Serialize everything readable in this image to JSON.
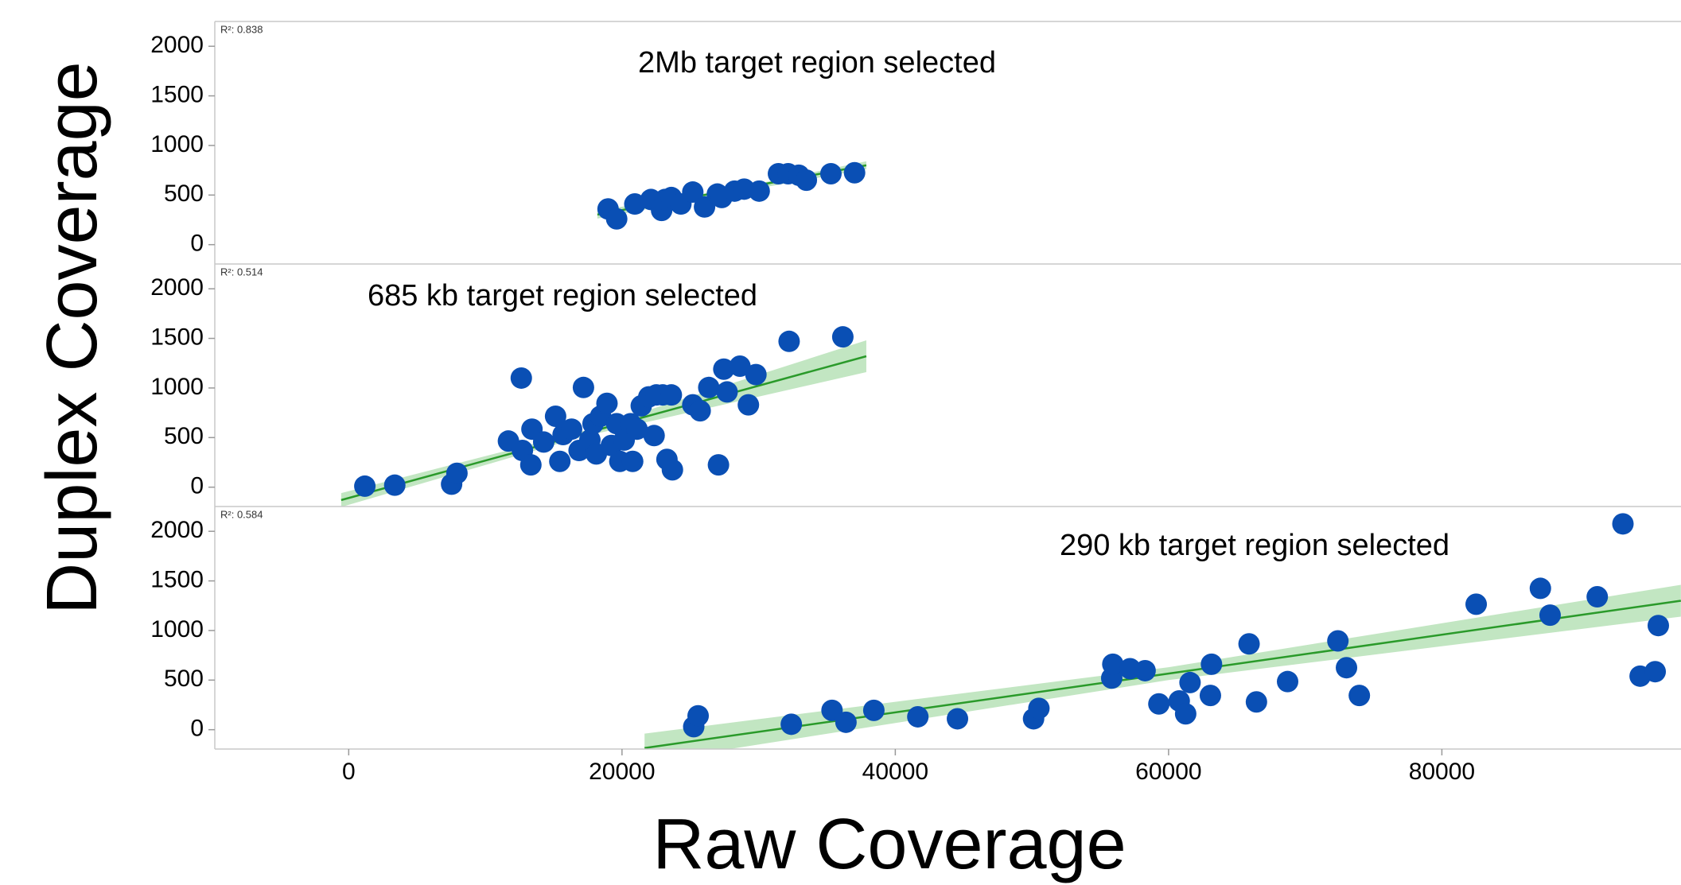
{
  "shared_axes": {
    "xlabel": "Raw Coverage",
    "ylabel": "Duplex Coverage"
  },
  "chart_data": [
    {
      "type": "scatter",
      "annotation": "2Mb target region selected",
      "r2_label": "R²: 0.838",
      "color": "#0a4fb4",
      "fit_color": "#2a9a2a",
      "band_color": "#a8dba8",
      "xlim": [
        -9800,
        97500
      ],
      "ylim": [
        -195,
        2250
      ],
      "yticks": [
        0,
        500,
        1000,
        1500,
        2000
      ],
      "x": [
        18980,
        19610,
        20940,
        22120,
        22900,
        23140,
        23610,
        24310,
        25180,
        26040,
        26980,
        27300,
        28240,
        28940,
        30040,
        31450,
        32160,
        32940,
        33490,
        35290,
        37020
      ],
      "values": [
        360,
        260,
        410,
        455,
        345,
        455,
        475,
        410,
        530,
        380,
        510,
        475,
        540,
        560,
        540,
        715,
        715,
        700,
        650,
        715,
        725
      ],
      "fit": {
        "x": [
          18200,
          37880
        ],
        "values": [
          303,
          800
        ]
      },
      "band": {
        "x": [
          18200,
          28000,
          37880
        ],
        "lower": [
          263,
          520,
          760
        ],
        "upper": [
          343,
          560,
          840
        ]
      }
    },
    {
      "type": "scatter",
      "annotation": "685 kb target region selected",
      "r2_label": "R²: 0.514",
      "color": "#0a4fb4",
      "fit_color": "#2a9a2a",
      "band_color": "#a8dba8",
      "xlim": [
        -9800,
        97500
      ],
      "ylim": [
        -195,
        2250
      ],
      "yticks": [
        0,
        500,
        1000,
        1500,
        2000
      ],
      "x": [
        1180,
        3370,
        7530,
        7920,
        11690,
        12630,
        12710,
        13330,
        13410,
        14270,
        15140,
        15450,
        15690,
        16310,
        16860,
        17180,
        17650,
        17880,
        18120,
        18430,
        18900,
        19220,
        19610,
        19840,
        20160,
        20630,
        20780,
        21100,
        21410,
        21960,
        22350,
        22510,
        22980,
        23290,
        23690,
        23610,
        25180,
        25720,
        26350,
        27060,
        27450,
        27690,
        28630,
        29250,
        29800,
        32230,
        36160
      ],
      "values": [
        10,
        20,
        30,
        140,
        465,
        1100,
        370,
        225,
        585,
        455,
        715,
        260,
        530,
        585,
        370,
        1005,
        475,
        640,
        335,
        715,
        845,
        420,
        640,
        260,
        475,
        640,
        260,
        585,
        820,
        910,
        520,
        930,
        930,
        280,
        175,
        930,
        830,
        770,
        1005,
        225,
        1190,
        960,
        1220,
        830,
        1135,
        1470,
        1515
      ],
      "fit": {
        "x": [
          -550,
          37880
        ],
        "values": [
          -130,
          1320
        ]
      },
      "band": {
        "x": [
          -550,
          17000,
          37880
        ],
        "lower": [
          -200,
          505,
          1160
        ],
        "upper": [
          -60,
          560,
          1480
        ]
      }
    },
    {
      "type": "scatter",
      "annotation": "290 kb target region selected",
      "r2_label": "R²: 0.584",
      "color": "#0a4fb4",
      "fit_color": "#2a9a2a",
      "band_color": "#a8dba8",
      "xlim": [
        -9800,
        97500
      ],
      "ylim": [
        -195,
        2250
      ],
      "yticks": [
        0,
        500,
        1000,
        1500,
        2000
      ],
      "xticks": [
        0,
        20000,
        40000,
        60000,
        80000
      ],
      "x": [
        25250,
        25570,
        32390,
        35370,
        36390,
        38430,
        41650,
        44550,
        50120,
        50510,
        55840,
        55920,
        57180,
        58280,
        59290,
        60780,
        61250,
        61570,
        63060,
        63140,
        65890,
        66430,
        68710,
        72390,
        73020,
        73960,
        82510,
        87210,
        87920,
        91370,
        93250,
        94510,
        95610,
        95840
      ],
      "values": [
        30,
        140,
        55,
        195,
        75,
        195,
        130,
        110,
        110,
        215,
        520,
        660,
        615,
        595,
        260,
        290,
        160,
        475,
        345,
        660,
        865,
        280,
        485,
        895,
        625,
        345,
        1265,
        1425,
        1155,
        1340,
        2075,
        540,
        585,
        1050
      ],
      "fit": {
        "x": [
          21650,
          97490
        ],
        "values": [
          -185,
          1300
        ]
      },
      "band": {
        "x": [
          21650,
          60000,
          97490
        ],
        "lower": [
          -330,
          500,
          1140
        ],
        "upper": [
          -40,
          630,
          1460
        ]
      }
    }
  ]
}
